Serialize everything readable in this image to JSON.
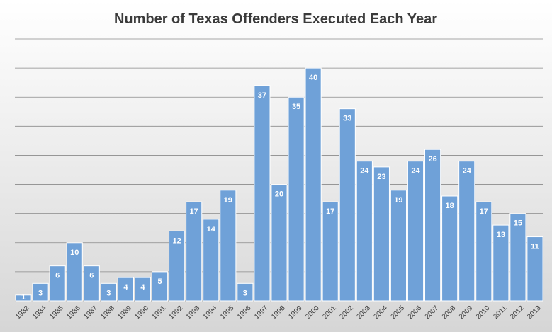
{
  "chart_data": {
    "type": "bar",
    "title": "Number of Texas Offenders Executed Each Year",
    "xlabel": "",
    "ylabel": "",
    "categories": [
      "1982",
      "1984",
      "1985",
      "1986",
      "1987",
      "1988",
      "1989",
      "1990",
      "1991",
      "1992",
      "1993",
      "1994",
      "1995",
      "1996",
      "1997",
      "1998",
      "1999",
      "2000",
      "2001",
      "2002",
      "2003",
      "2004",
      "2005",
      "2006",
      "2007",
      "2008",
      "2009",
      "2010",
      "2011",
      "2012",
      "2013"
    ],
    "values": [
      1,
      3,
      6,
      10,
      6,
      3,
      4,
      4,
      5,
      12,
      17,
      14,
      19,
      3,
      37,
      20,
      35,
      40,
      17,
      33,
      24,
      23,
      19,
      24,
      26,
      18,
      24,
      17,
      13,
      15,
      11
    ],
    "ylim": [
      0,
      45
    ],
    "gridline_step": 5,
    "grid": true,
    "legend": "none",
    "data_labels": true,
    "colors": {
      "bar_fill": "#6fa1d8",
      "bar_stroke": "#ffffff",
      "grid": "#8a8a8a",
      "label": "#ffffff",
      "title": "#3a3a3a",
      "tick": "#404040"
    }
  }
}
